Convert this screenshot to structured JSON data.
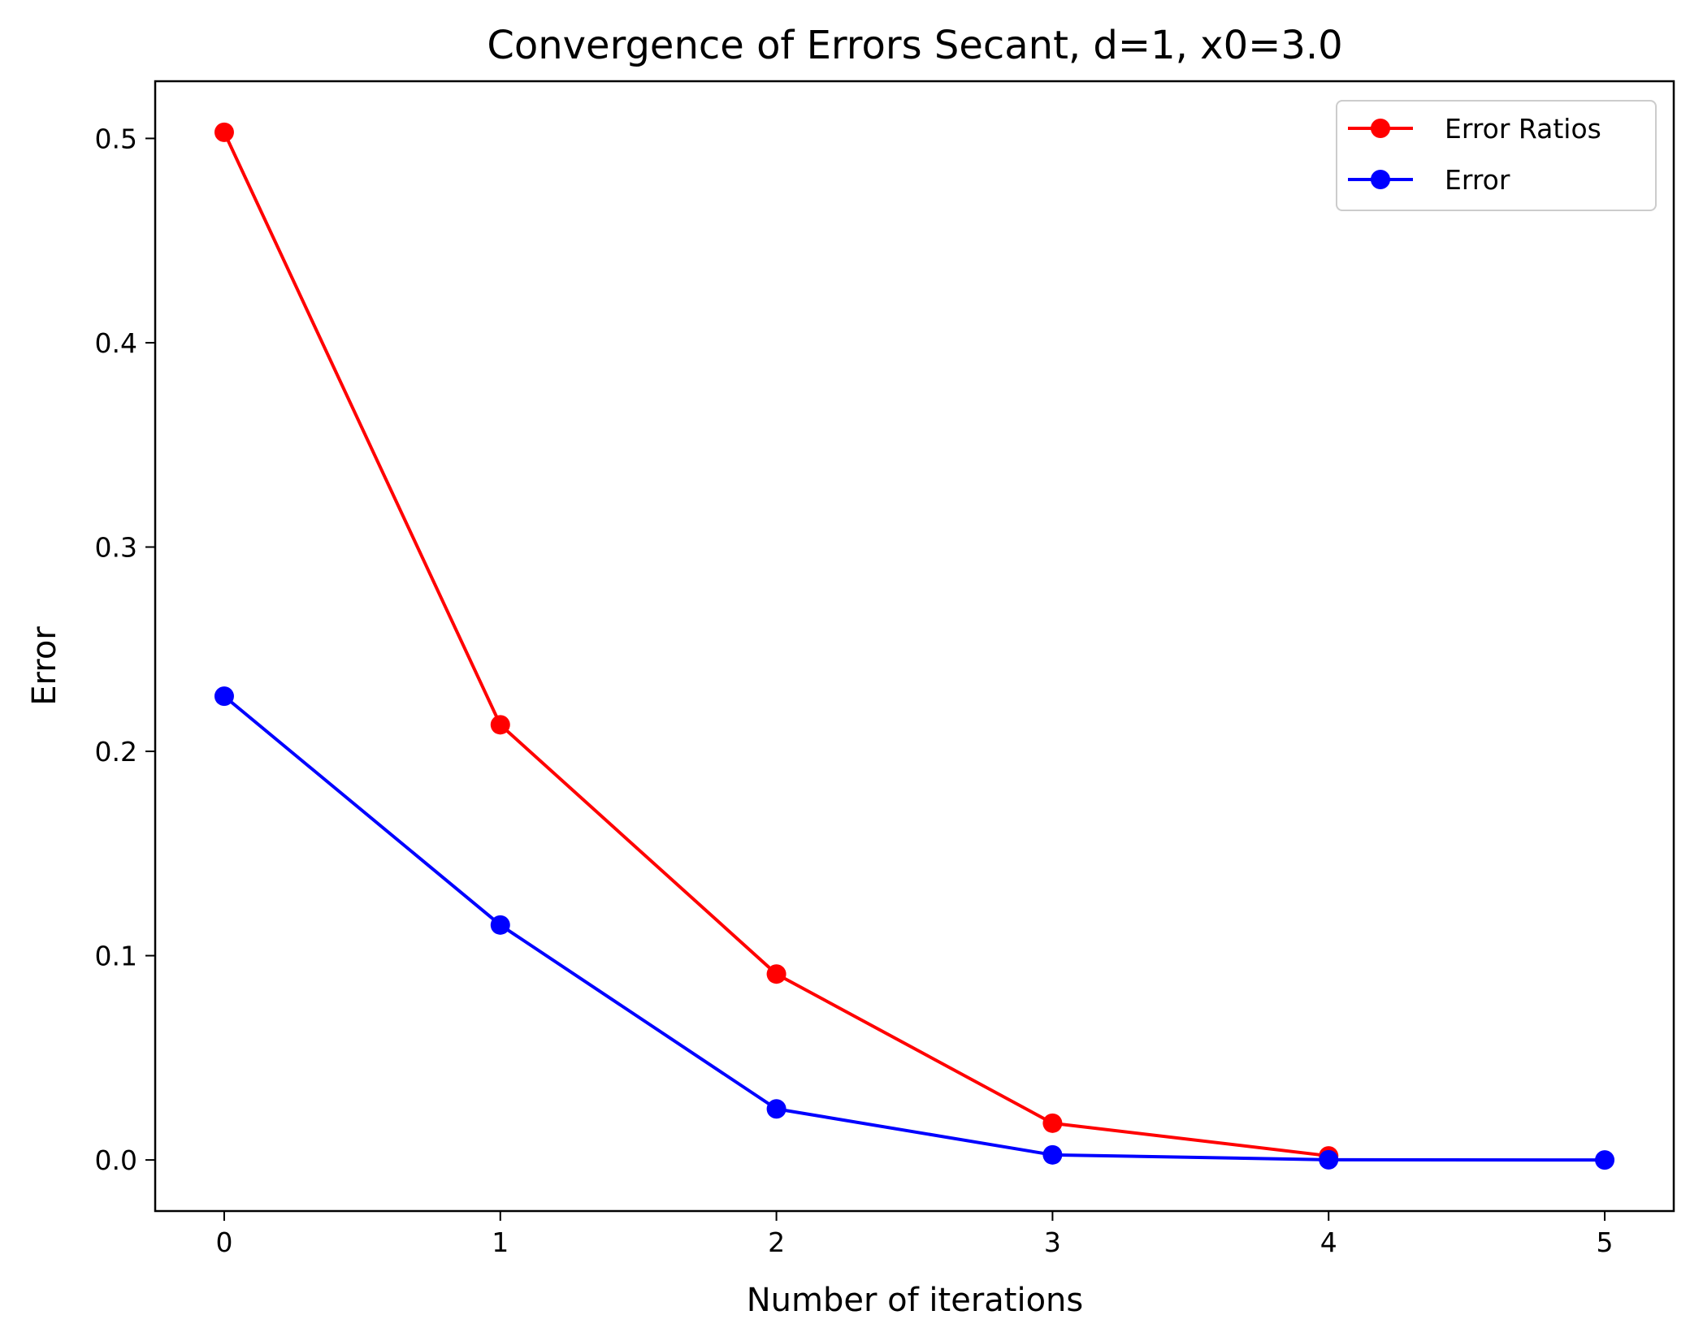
{
  "chart_data": {
    "type": "line",
    "title": "Convergence of Errors Secant, d=1, x0=3.0",
    "xlabel": "Number of iterations",
    "ylabel": "Error",
    "xlim": [
      -0.25,
      5.25
    ],
    "ylim": [
      -0.025,
      0.528
    ],
    "xticks": [
      0,
      1,
      2,
      3,
      4,
      5
    ],
    "xtick_labels": [
      "0",
      "1",
      "2",
      "3",
      "4",
      "5"
    ],
    "yticks": [
      0.0,
      0.1,
      0.2,
      0.3,
      0.4,
      0.5
    ],
    "ytick_labels": [
      "0.0",
      "0.1",
      "0.2",
      "0.3",
      "0.4",
      "0.5"
    ],
    "grid": false,
    "legend_position": "top-right",
    "series": [
      {
        "name": "Error Ratios",
        "color": "#ff0000",
        "marker": "circle",
        "x": [
          0,
          1,
          2,
          3,
          4
        ],
        "y": [
          0.503,
          0.213,
          0.091,
          0.018,
          0.002
        ]
      },
      {
        "name": "Error",
        "color": "#0000ff",
        "marker": "circle",
        "x": [
          0,
          1,
          2,
          3,
          4,
          5
        ],
        "y": [
          0.227,
          0.115,
          0.025,
          0.0025,
          0.0001,
          0.0
        ]
      }
    ]
  }
}
